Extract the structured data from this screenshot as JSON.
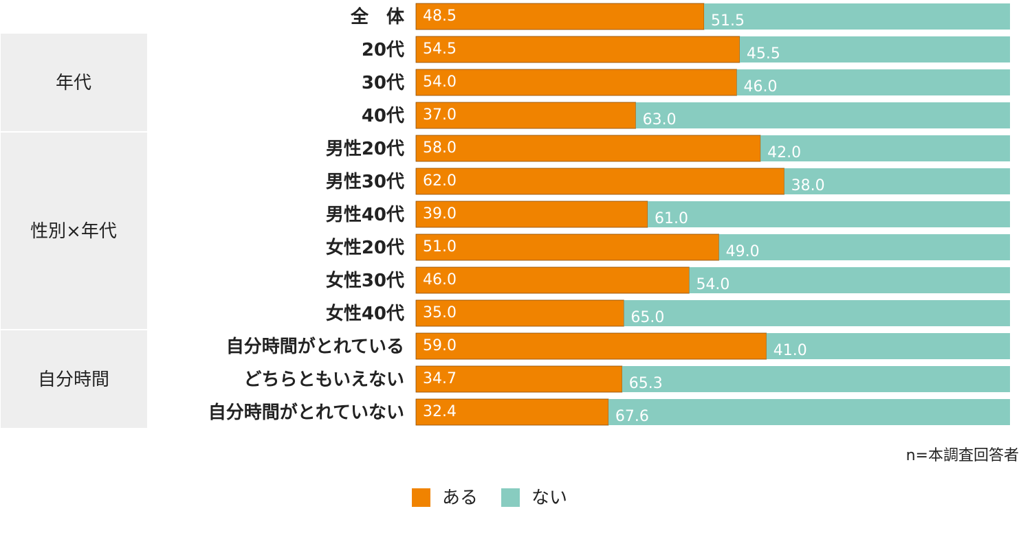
{
  "chart_data": {
    "type": "bar",
    "orientation": "horizontal",
    "stacked": true,
    "xlim": [
      0,
      100
    ],
    "categories": [
      "全　体",
      "20代",
      "30代",
      "40代",
      "男性20代",
      "男性30代",
      "男性40代",
      "女性20代",
      "女性30代",
      "女性40代",
      "自分時間がとれている",
      "どちらともいえない",
      "自分時間がとれていない"
    ],
    "series": [
      {
        "name": "ある",
        "color": "#f08300",
        "values": [
          48.5,
          54.5,
          54.0,
          37.0,
          58.0,
          62.0,
          39.0,
          51.0,
          46.0,
          35.0,
          59.0,
          34.7,
          32.4
        ],
        "labels": [
          "48.5",
          "54.5",
          "54.0",
          "37.0",
          "58.0",
          "62.0",
          "39.0",
          "51.0",
          "46.0",
          "35.0",
          "59.0",
          "34.7",
          "32.4"
        ]
      },
      {
        "name": "ない",
        "color": "#88ccc0",
        "values": [
          51.5,
          45.5,
          46.0,
          63.0,
          42.0,
          38.0,
          61.0,
          49.0,
          54.0,
          65.0,
          41.0,
          65.3,
          67.6
        ],
        "labels": [
          "51.5",
          "45.5",
          "46.0",
          "63.0",
          "42.0",
          "38.0",
          "61.0",
          "49.0",
          "54.0",
          "65.0",
          "41.0",
          "65.3",
          "67.6"
        ]
      }
    ],
    "groups": [
      {
        "label": "年代",
        "rows": [
          1,
          3
        ]
      },
      {
        "label": "性別×年代",
        "rows": [
          4,
          9
        ]
      },
      {
        "label": "自分時間",
        "rows": [
          10,
          12
        ]
      }
    ],
    "legend_placement": "bottom-center",
    "grid": false
  },
  "note": "n=本調査回答者"
}
